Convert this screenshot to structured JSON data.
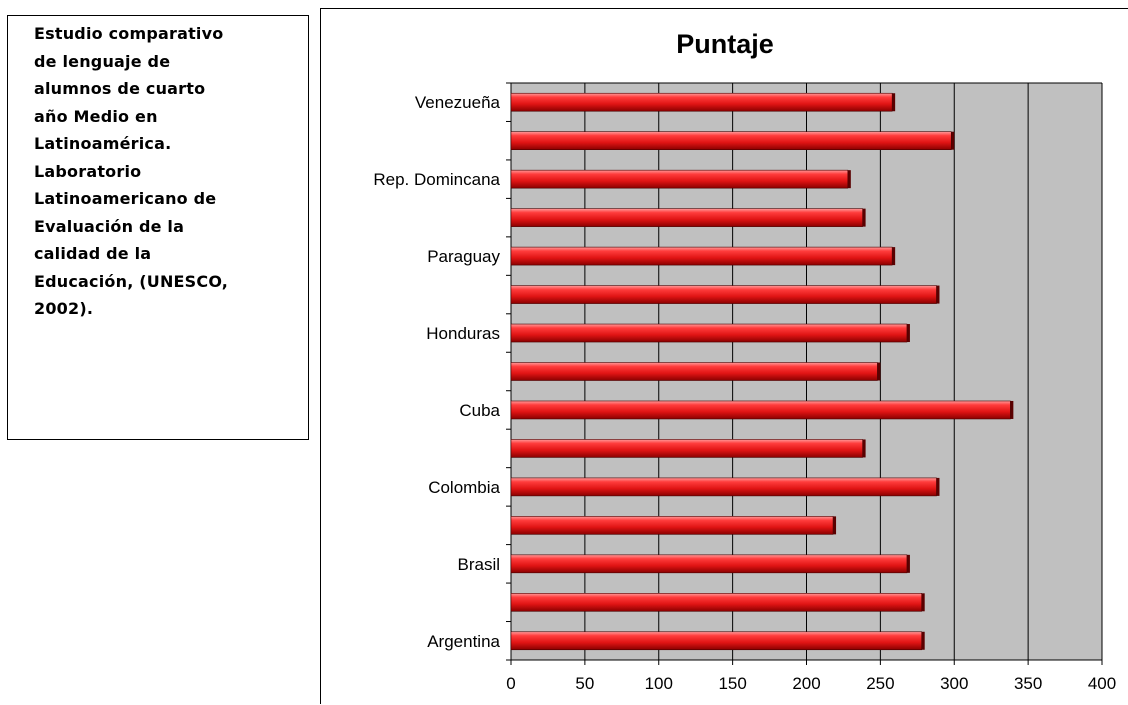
{
  "caption": {
    "lines": [
      "Estudio comparativo",
      "de lenguaje de",
      "alumnos de cuarto",
      "año Medio en",
      "Latinoamérica.",
      "Laboratorio",
      "Latinoamericano de",
      "Evaluación de la",
      "calidad de la",
      "Educación,  (UNESCO,",
      "2002)."
    ]
  },
  "chart_data": {
    "type": "bar",
    "orientation": "horizontal",
    "title": "Puntaje",
    "categories": [
      "Argentina",
      "",
      "Brasil",
      "",
      "Colombia",
      "",
      "Cuba",
      "",
      "Honduras",
      "",
      "Paraguay",
      "",
      "Rep. Domincana",
      "",
      "Venezueña"
    ],
    "values": [
      280,
      280,
      270,
      220,
      290,
      240,
      340,
      250,
      270,
      290,
      260,
      240,
      230,
      300,
      260
    ],
    "xlim": [
      0,
      400
    ],
    "xticks": [
      0,
      50,
      100,
      150,
      200,
      250,
      300,
      350,
      400
    ],
    "xlabel": "",
    "ylabel": "",
    "grid": true,
    "plot_background": "#c0c0c0",
    "bar_color": "#e61e1e",
    "legend": "none"
  }
}
